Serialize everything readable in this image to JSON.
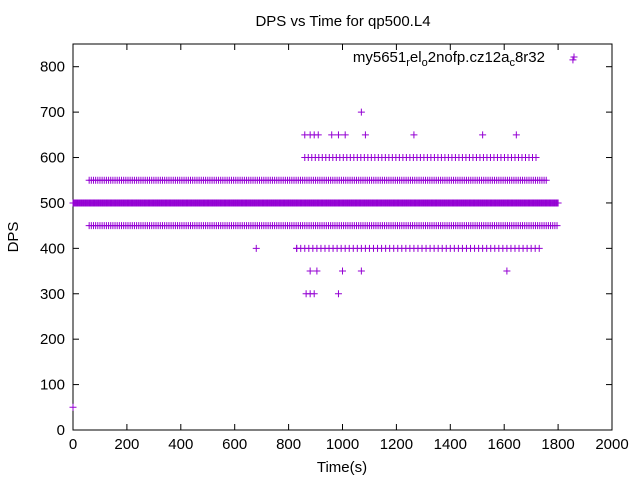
{
  "chart_data": {
    "type": "scatter",
    "title": "DPS vs Time for qp500.L4",
    "xlabel": "Time(s)",
    "ylabel": "DPS",
    "xlim": [
      0,
      2000
    ],
    "ylim": [
      0,
      850
    ],
    "xticks": [
      0,
      200,
      400,
      600,
      800,
      1000,
      1200,
      1400,
      1600,
      1800,
      2000
    ],
    "yticks": [
      0,
      100,
      200,
      300,
      400,
      500,
      600,
      700,
      800
    ],
    "grid": false,
    "legend_position": "top-right",
    "marker": "+",
    "color": "#9400d3",
    "series": [
      {
        "name_parts": [
          "my5651",
          "r",
          "el",
          "o",
          "2nofp.cz12a",
          "c",
          "8r32"
        ],
        "bands": [
          {
            "y": 500,
            "from": 0,
            "to": 1800,
            "step": 3
          },
          {
            "y": 550,
            "from": 60,
            "to": 1760,
            "step": 8
          },
          {
            "y": 450,
            "from": 60,
            "to": 1800,
            "step": 8
          },
          {
            "y": 600,
            "from": 860,
            "to": 1730,
            "step": 13
          },
          {
            "y": 400,
            "from": 830,
            "to": 1730,
            "step": 15
          }
        ],
        "points": [
          [
            0,
            50
          ],
          [
            1070,
            700
          ],
          [
            1855,
            815
          ],
          [
            680,
            400
          ],
          [
            830,
            400
          ],
          [
            860,
            650
          ],
          [
            880,
            650
          ],
          [
            895,
            650
          ],
          [
            910,
            650
          ],
          [
            960,
            650
          ],
          [
            985,
            650
          ],
          [
            1010,
            650
          ],
          [
            1085,
            650
          ],
          [
            1265,
            650
          ],
          [
            1520,
            650
          ],
          [
            1645,
            650
          ],
          [
            880,
            350
          ],
          [
            905,
            350
          ],
          [
            1000,
            350
          ],
          [
            1070,
            350
          ],
          [
            1610,
            350
          ],
          [
            865,
            300
          ],
          [
            880,
            300
          ],
          [
            895,
            300
          ],
          [
            985,
            300
          ]
        ]
      }
    ]
  }
}
